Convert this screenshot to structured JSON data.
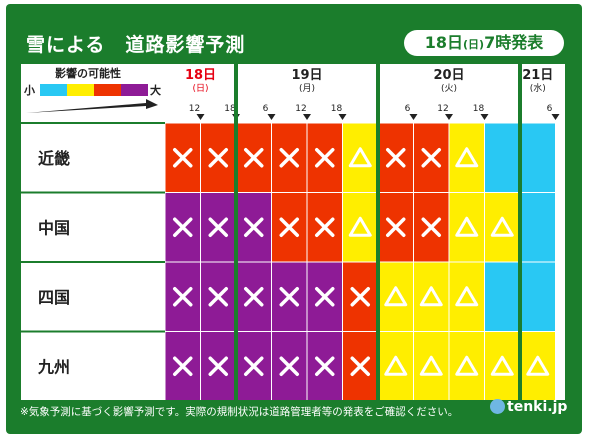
{
  "title": "雪による　道路影響予測",
  "issued": {
    "day": "18日",
    "dow": "(日)",
    "time": "7時発表"
  },
  "legend": {
    "title": "影響の可能性",
    "low": "小",
    "high": "大",
    "colors": [
      "#29c8f3",
      "#ffee00",
      "#ee3300",
      "#8e1b96"
    ]
  },
  "days": [
    {
      "day": "18日",
      "dow": "(日)",
      "color": "#e60012",
      "ticks": [
        "12",
        "18"
      ]
    },
    {
      "day": "19日",
      "dow": "(月)",
      "color": "#222222",
      "ticks": [
        "6",
        "12",
        "18"
      ]
    },
    {
      "day": "20日",
      "dow": "(火)",
      "color": "#222222",
      "ticks": [
        "6",
        "12",
        "18"
      ]
    },
    {
      "day": "21日",
      "dow": "(水)",
      "color": "#222222",
      "ticks": [
        "6"
      ]
    }
  ],
  "regions": [
    "近畿",
    "中国",
    "四国",
    "九州"
  ],
  "colors": {
    "blue": "#29c8f3",
    "yellow": "#ffee00",
    "red": "#ee3300",
    "purple": "#8e1b96"
  },
  "grid": [
    [
      "red",
      "red",
      "red",
      "red",
      "red",
      "yellow",
      "red",
      "red",
      "yellow",
      "blue",
      "blue"
    ],
    [
      "purple",
      "purple",
      "purple",
      "red",
      "red",
      "yellow",
      "red",
      "red",
      "yellow",
      "yellow",
      "blue"
    ],
    [
      "purple",
      "purple",
      "purple",
      "purple",
      "purple",
      "red",
      "yellow",
      "yellow",
      "yellow",
      "blue",
      "blue"
    ],
    [
      "purple",
      "purple",
      "purple",
      "purple",
      "purple",
      "red",
      "yellow",
      "yellow",
      "yellow",
      "yellow",
      "yellow"
    ]
  ],
  "marks": {
    "red": "×",
    "purple": "×",
    "yellow": "△",
    "blue": ""
  },
  "footer": "※気象予測に基づく影響予測です。実際の規制状況は道路管理者等の発表をご確認ください。",
  "logo": "tenki.jp"
}
